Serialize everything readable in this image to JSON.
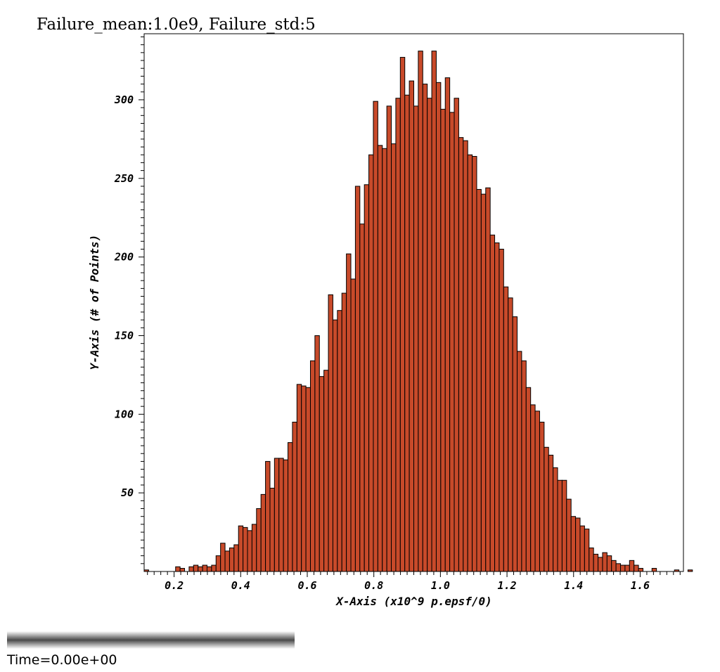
{
  "chart_data": {
    "type": "bar",
    "title": "Failure_mean:1.0e9, Failure_std:5",
    "xlabel": "X-Axis (x10^9 p.epsf/0)",
    "ylabel": "Y-Axis (# of Points)",
    "xlim": [
      0.11,
      1.73
    ],
    "ylim": [
      0,
      342
    ],
    "x_ticks": [
      "0.2",
      "0.4",
      "0.6",
      "0.8",
      "1.0",
      "1.2",
      "1.4",
      "1.6"
    ],
    "y_ticks": [
      "50",
      "100",
      "150",
      "200",
      "250",
      "300"
    ],
    "grid": false,
    "bin_start": 0.11,
    "bin_width": 0.0135,
    "values": [
      1,
      0,
      0,
      0,
      0,
      0,
      0,
      3,
      2,
      0,
      3,
      4,
      3,
      4,
      3,
      4,
      10,
      18,
      13,
      15,
      17,
      29,
      28,
      26,
      30,
      40,
      49,
      70,
      53,
      72,
      72,
      71,
      82,
      95,
      119,
      118,
      117,
      134,
      150,
      124,
      128,
      176,
      160,
      166,
      177,
      202,
      186,
      245,
      221,
      246,
      265,
      299,
      271,
      269,
      296,
      272,
      301,
      327,
      303,
      312,
      296,
      331,
      310,
      301,
      331,
      311,
      294,
      314,
      292,
      301,
      276,
      274,
      265,
      264,
      243,
      240,
      244,
      214,
      209,
      205,
      181,
      174,
      162,
      140,
      134,
      117,
      106,
      102,
      95,
      79,
      74,
      66,
      58,
      58,
      46,
      35,
      34,
      29,
      27,
      15,
      11,
      9,
      12,
      10,
      7,
      5,
      4,
      4,
      7,
      4,
      2,
      0,
      0,
      2,
      0,
      0,
      0,
      0,
      1,
      0,
      0,
      1
    ],
    "bar_color": "#c84a2a"
  },
  "time_label": "Time=0.00e+00"
}
